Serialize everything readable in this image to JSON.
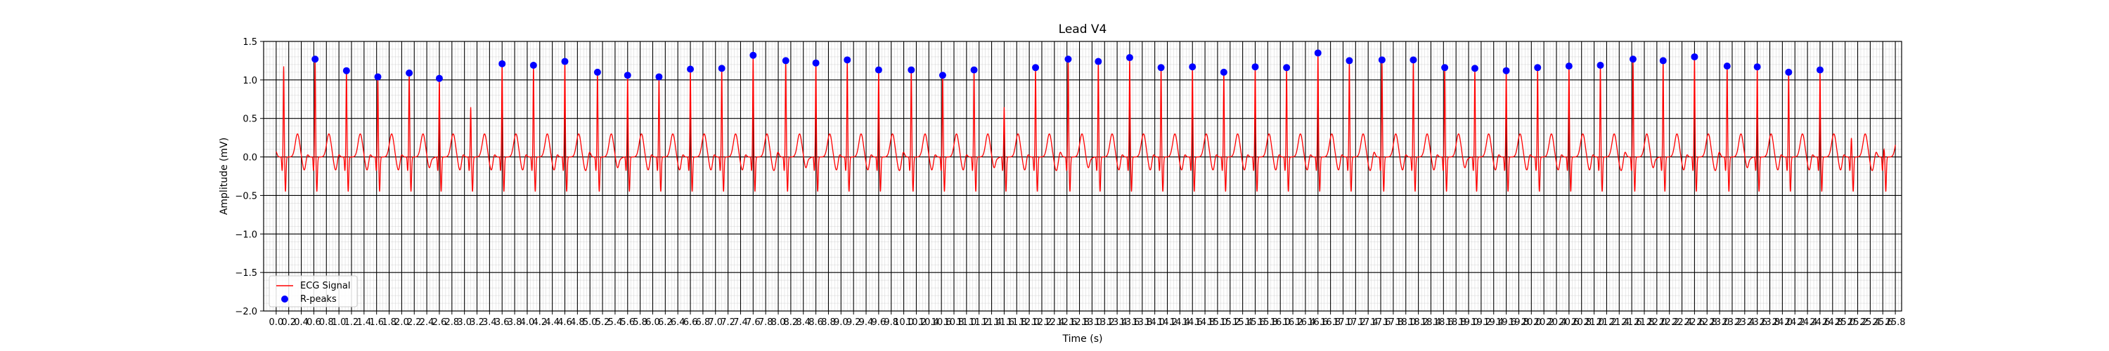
{
  "chart_data": {
    "type": "line",
    "title": "Lead V4",
    "xlabel": "Time (s)",
    "ylabel": "Amplitude (mV)",
    "xlim": [
      -0.2,
      25.9
    ],
    "ylim": [
      -2.0,
      1.5
    ],
    "grid": true,
    "legend_position": "lower-left",
    "yticks": [
      -2.0,
      -1.5,
      -1.0,
      -0.5,
      0.0,
      0.5,
      1.0,
      1.5
    ],
    "ytick_labels": [
      "−2.0",
      "−1.5",
      "−1.0",
      "−0.5",
      "0.0",
      "0.5",
      "1.0",
      "1.5"
    ],
    "xticks_start": 0.0,
    "xticks_step": 0.2,
    "xticks_count": 130,
    "colors": {
      "signal": "#ff0000",
      "peaks": "#0000ff",
      "grid_major": "#000000",
      "grid_minor": "#c8c8c8"
    },
    "series": [
      {
        "name": "ECG Signal",
        "kind": "line",
        "x_start": 0.0,
        "x_end": 25.8,
        "beat_times": [
          0.12,
          0.62,
          1.12,
          1.62,
          2.12,
          2.6,
          3.1,
          3.6,
          4.1,
          4.6,
          5.12,
          5.6,
          6.1,
          6.6,
          7.1,
          7.6,
          8.12,
          8.6,
          9.1,
          9.6,
          10.12,
          10.62,
          11.12,
          11.6,
          12.1,
          12.62,
          13.1,
          13.6,
          14.1,
          14.6,
          15.1,
          15.6,
          16.1,
          16.6,
          17.1,
          17.62,
          18.12,
          18.62,
          19.1,
          19.6,
          20.1,
          20.6,
          21.1,
          21.62,
          22.1,
          22.6,
          23.12,
          23.6,
          24.1,
          24.6,
          25.1,
          25.62
        ],
        "beat_amplitudes": [
          1.18,
          1.27,
          1.12,
          1.04,
          1.09,
          1.02,
          0.65,
          1.21,
          1.19,
          1.24,
          1.1,
          1.06,
          1.04,
          1.14,
          1.15,
          1.32,
          1.25,
          1.22,
          1.26,
          1.13,
          1.13,
          1.06,
          1.13,
          0.65,
          1.16,
          1.27,
          1.24,
          1.29,
          1.16,
          1.17,
          1.1,
          1.17,
          1.16,
          1.35,
          1.25,
          1.26,
          1.26,
          1.16,
          1.15,
          1.12,
          1.16,
          1.18,
          1.19,
          1.27,
          1.25,
          1.3,
          1.18,
          1.17,
          1.1,
          1.13,
          0.25,
          0.1
        ],
        "s_wave_depth": -0.45,
        "t_wave_height": 0.3
      },
      {
        "name": "R-peaks",
        "kind": "scatter",
        "x": [
          0.62,
          1.12,
          1.62,
          2.12,
          2.6,
          3.6,
          4.1,
          4.6,
          5.12,
          5.6,
          6.1,
          6.6,
          7.1,
          7.6,
          8.12,
          8.6,
          9.1,
          9.6,
          10.12,
          10.62,
          11.12,
          12.1,
          12.62,
          13.1,
          13.6,
          14.1,
          14.6,
          15.1,
          15.6,
          16.1,
          16.6,
          17.1,
          17.62,
          18.12,
          18.62,
          19.1,
          19.6,
          20.1,
          20.6,
          21.1,
          21.62,
          22.1,
          22.6,
          23.12,
          23.6,
          24.1,
          24.6
        ],
        "y": [
          1.27,
          1.12,
          1.04,
          1.09,
          1.02,
          1.21,
          1.19,
          1.24,
          1.1,
          1.06,
          1.04,
          1.14,
          1.15,
          1.32,
          1.25,
          1.22,
          1.26,
          1.13,
          1.13,
          1.06,
          1.13,
          1.16,
          1.27,
          1.24,
          1.29,
          1.16,
          1.17,
          1.1,
          1.17,
          1.16,
          1.35,
          1.25,
          1.26,
          1.26,
          1.16,
          1.15,
          1.12,
          1.16,
          1.18,
          1.19,
          1.27,
          1.25,
          1.3,
          1.18,
          1.17,
          1.1,
          1.13
        ]
      }
    ],
    "legend": [
      {
        "label": "ECG Signal",
        "marker": "line"
      },
      {
        "label": "R-peaks",
        "marker": "dot"
      }
    ]
  }
}
